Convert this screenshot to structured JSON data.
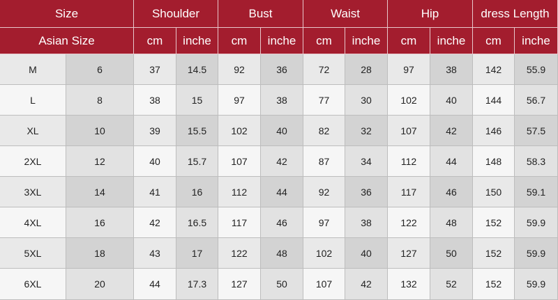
{
  "header": {
    "groups": [
      "Size",
      "Shoulder",
      "Bust",
      "Waist",
      "Hip",
      "dress Length"
    ],
    "subheaders": [
      "Asian Size",
      "cm",
      "inche",
      "cm",
      "inche",
      "cm",
      "inche",
      "cm",
      "inche",
      "cm",
      "inche"
    ]
  },
  "table": {
    "rows": [
      [
        "M",
        6,
        37,
        14.5,
        92,
        36,
        72,
        28,
        97,
        38,
        142,
        55.9
      ],
      [
        "L",
        8,
        38,
        15,
        97,
        38,
        77,
        30,
        102,
        40,
        144,
        56.7
      ],
      [
        "XL",
        10,
        39,
        15.5,
        102,
        40,
        82,
        32,
        107,
        42,
        146,
        57.5
      ],
      [
        "2XL",
        12,
        40,
        15.7,
        107,
        42,
        87,
        34,
        112,
        44,
        148,
        58.3
      ],
      [
        "3XL",
        14,
        41,
        16,
        112,
        44,
        92,
        36,
        117,
        46,
        150,
        59.1
      ],
      [
        "4XL",
        16,
        42,
        16.5,
        117,
        46,
        97,
        38,
        122,
        48,
        152,
        59.9
      ],
      [
        "5XL",
        18,
        43,
        17,
        122,
        48,
        102,
        40,
        127,
        50,
        152,
        59.9
      ],
      [
        "6XL",
        20,
        44,
        17.3,
        127,
        50,
        107,
        42,
        132,
        52,
        152,
        59.9
      ]
    ]
  }
}
